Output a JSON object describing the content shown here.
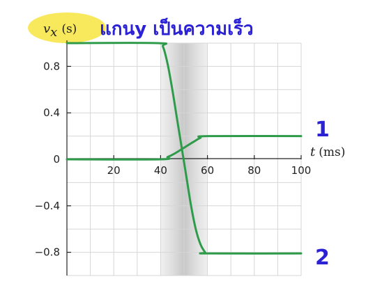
{
  "chart_data": {
    "type": "line",
    "title": "",
    "xlabel_var": "t",
    "xlabel_unit": "(ms)",
    "ylabel_var": "v",
    "ylabel_sub": "x",
    "ylabel_unit": "(s)",
    "xlim": [
      0,
      100
    ],
    "ylim": [
      -1.0,
      1.0
    ],
    "x_ticks": [
      20,
      40,
      60,
      80,
      100
    ],
    "x_tick_labels": [
      "20",
      "40",
      "60",
      "80",
      "100"
    ],
    "y_ticks": [
      0.8,
      0.4,
      0,
      -0.4,
      -0.8
    ],
    "y_tick_labels": [
      "0.8",
      "0.4",
      "0",
      "−0.4",
      "−0.8"
    ],
    "grid": true,
    "shaded_region": [
      40,
      60
    ],
    "series": [
      {
        "name": "1",
        "color": "#2e9b4a",
        "points": [
          [
            0,
            0
          ],
          [
            40,
            0
          ],
          [
            43,
            0.02
          ],
          [
            46,
            0.05
          ],
          [
            50,
            0.1
          ],
          [
            54,
            0.15
          ],
          [
            57,
            0.185
          ],
          [
            60,
            0.2
          ],
          [
            100,
            0.2
          ]
        ]
      },
      {
        "name": "2",
        "color": "#2e9b4a",
        "points": [
          [
            0,
            1.0
          ],
          [
            39,
            1.0
          ],
          [
            41,
            0.97
          ],
          [
            43,
            0.82
          ],
          [
            45,
            0.6
          ],
          [
            47,
            0.35
          ],
          [
            49,
            0.1
          ],
          [
            51,
            -0.15
          ],
          [
            53,
            -0.4
          ],
          [
            55,
            -0.6
          ],
          [
            57,
            -0.73
          ],
          [
            59,
            -0.8
          ],
          [
            60,
            -0.81
          ],
          [
            100,
            -0.81
          ]
        ]
      }
    ],
    "annotations": {
      "handwritten_note": "แกนy เป็นความเร็ว",
      "label_1": "1",
      "label_2": "2",
      "highlight_color": "#f7e64a"
    }
  }
}
